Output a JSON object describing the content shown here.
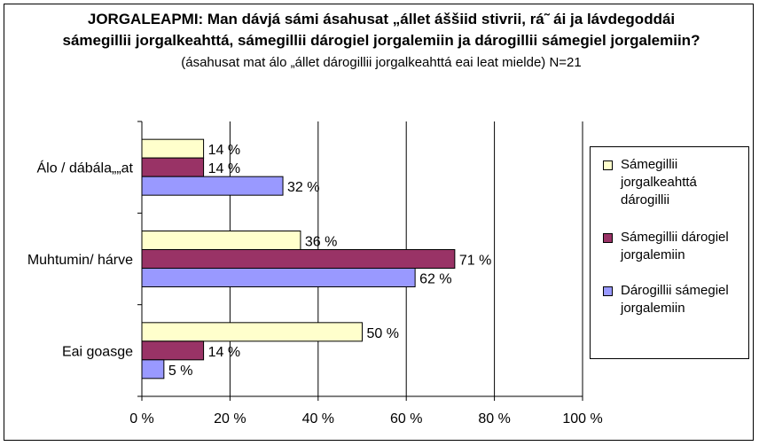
{
  "title": {
    "bold": "JORGALEAPMI: Man dávjá sámi ásahusat „állet áššiid stivrii, rá˜ ái ja lávdegoddái sámegillii jorgalkeahttá, sámegillii dárogiel jorgalemiin ja dárogillii sámegiel jorgalemiin?",
    "normal": "(ásahusat mat álo „állet dárogillii jorgalkeahttá eai leat mielde) N=21"
  },
  "chart_data": {
    "type": "bar",
    "orientation": "horizontal",
    "categories": [
      "Álo / dábála„„at",
      "Muhtumin/ hárve",
      "Eai goasge"
    ],
    "series": [
      {
        "name": "Sámegillii jorgalkeahttá dárogillii",
        "values": [
          14,
          36,
          50
        ],
        "labels": [
          "14 %",
          "36 %",
          "50 %"
        ],
        "color": "#FFFFCC"
      },
      {
        "name": "Sámegillii dárogiel jorgalemiin",
        "values": [
          14,
          71,
          14
        ],
        "labels": [
          "14 %",
          "71 %",
          "14 %"
        ],
        "color": "#993366"
      },
      {
        "name": "Dárogillii sámegiel jorgalemiin",
        "values": [
          32,
          62,
          5
        ],
        "labels": [
          "32 %",
          "62 %",
          "5 %"
        ],
        "color": "#9999FF"
      }
    ],
    "xlim": [
      0,
      100
    ],
    "xticks": [
      "0 %",
      "20 %",
      "40 %",
      "60 %",
      "80 %",
      "100 %"
    ],
    "grid": true,
    "legend_position": "right"
  },
  "legend": {
    "items": [
      {
        "lines": [
          "Sámegillii",
          "jorgalkeahttá",
          "dárogillii"
        ]
      },
      {
        "lines": [
          "Sámegillii dárogiel",
          "jorgalemiin"
        ]
      },
      {
        "lines": [
          "Dárogillii sámegiel",
          "jorgalemiin"
        ]
      }
    ]
  }
}
